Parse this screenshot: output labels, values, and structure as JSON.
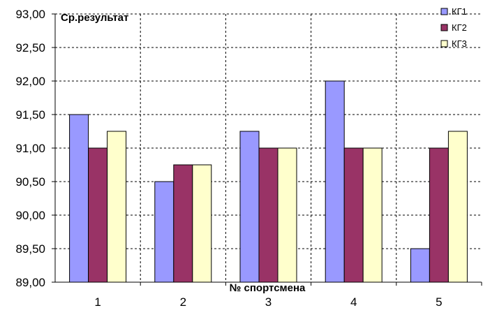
{
  "chart_data": {
    "type": "bar",
    "title": "",
    "ylabel": "Ср.результат",
    "xlabel": "№ спортсмена",
    "categories": [
      "1",
      "2",
      "3",
      "4",
      "5"
    ],
    "ylim": [
      89.0,
      93.0
    ],
    "ytick_step": 0.5,
    "ytick_labels": [
      "89,00",
      "89,50",
      "90,00",
      "90,50",
      "91,00",
      "91,50",
      "92,00",
      "92,50",
      "93,00"
    ],
    "grid": true,
    "legend_position": "top-right",
    "series": [
      {
        "name": "КГ1",
        "color": "#9999ff",
        "values": [
          91.5,
          90.5,
          91.25,
          92.0,
          89.5
        ]
      },
      {
        "name": "КГ2",
        "color": "#993366",
        "values": [
          91.0,
          90.75,
          91.0,
          91.0,
          91.0
        ]
      },
      {
        "name": "КГ3",
        "color": "#ffffcc",
        "values": [
          91.25,
          90.75,
          91.0,
          91.0,
          91.25
        ]
      }
    ]
  }
}
